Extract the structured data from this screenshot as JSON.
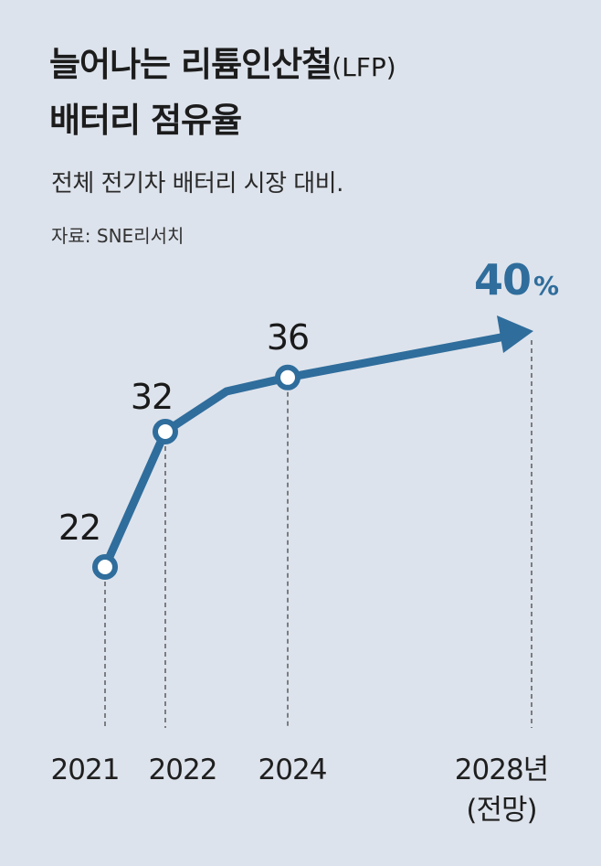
{
  "title_bold": "늘어나는 리튬인산철",
  "title_suffix": "(LFP)",
  "title_line2": "배터리 점유율",
  "subtitle": "전체 전기차 배터리 시장 대비.",
  "source": "자료: SNE리서치",
  "colors": {
    "background": "#dde3ec",
    "line": "#2f6d9c",
    "marker_fill": "#ffffff",
    "text": "#1f1f1f"
  },
  "chart_data": {
    "type": "line",
    "x": [
      "2021",
      "2022",
      "2024",
      "2028년"
    ],
    "x_sub": [
      "",
      "",
      "",
      "(전망)"
    ],
    "values": [
      22,
      32,
      36,
      40
    ],
    "value_labels": [
      "22",
      "32",
      "36",
      "40"
    ],
    "unit": "%",
    "forecast_last": true,
    "title": "늘어나는 리튬인산철(LFP) 배터리 점유율",
    "subtitle": "전체 전기차 배터리 시장 대비.",
    "source": "자료: SNE리서치",
    "xlabel": "",
    "ylabel": "",
    "grid": false
  }
}
